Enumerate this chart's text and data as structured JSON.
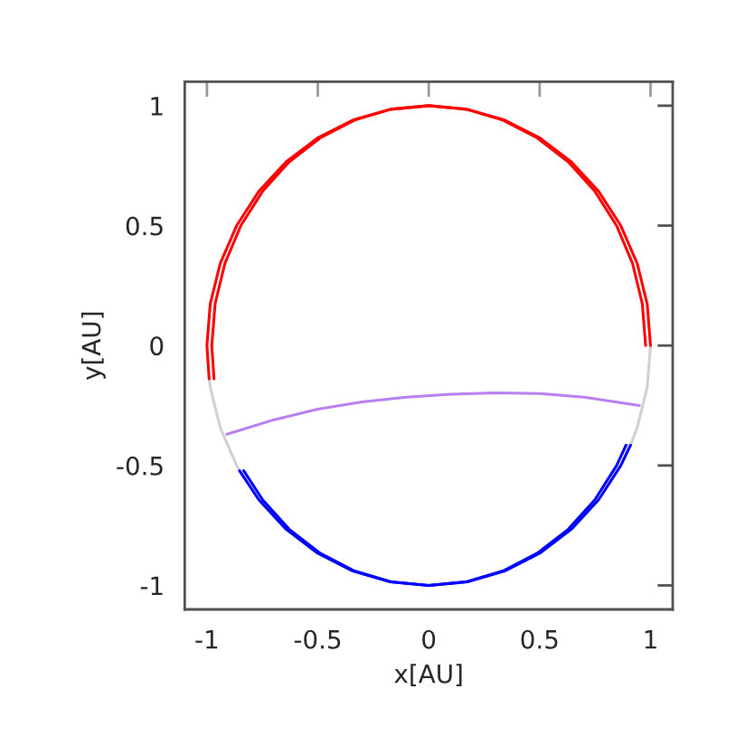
{
  "chart_data": {
    "type": "line",
    "xlabel": "x[AU]",
    "ylabel": "y[AU]",
    "xlim": [
      -1.1,
      1.1
    ],
    "ylim": [
      -1.1,
      1.1
    ],
    "xticks": [
      -1,
      -0.5,
      0,
      0.5,
      1
    ],
    "yticks": [
      -1,
      -0.5,
      0,
      0.5,
      1
    ],
    "line_style": "solid",
    "series": [
      {
        "color": "#d0d0d0",
        "x": [
          -0.99,
          -0.985,
          -0.94,
          -0.866,
          -0.853
        ],
        "values": [
          -0.139,
          -0.174,
          -0.342,
          -0.5,
          -0.522
        ]
      },
      {
        "color": "#d0d0d0",
        "x": [
          0.91,
          0.94,
          0.985,
          1
        ],
        "values": [
          -0.415,
          -0.342,
          -0.174,
          0
        ]
      },
      {
        "color": "#ff0000",
        "x": [
          -0.99,
          -1,
          -0.985,
          -0.94,
          -0.866,
          -0.766,
          -0.643,
          -0.5,
          -0.342,
          -0.174,
          0,
          0.174,
          0.342,
          0.5,
          0.643,
          0.766,
          0.866,
          0.94,
          0.985,
          1
        ],
        "values": [
          -0.139,
          0,
          0.174,
          0.342,
          0.5,
          0.643,
          0.766,
          0.866,
          0.94,
          0.985,
          1,
          0.985,
          0.94,
          0.866,
          0.766,
          0.643,
          0.5,
          0.342,
          0.174,
          0
        ]
      },
      {
        "color": "#ff0000",
        "x": [
          -0.968,
          -0.978,
          -0.963,
          -0.919,
          -0.847,
          -0.749,
          -0.629,
          -0.489,
          -0.334,
          -0.17,
          0,
          0.17,
          0.334,
          0.489,
          0.629,
          0.749,
          0.847,
          0.919,
          0.963,
          0.978
        ],
        "values": [
          -0.139,
          0,
          0.174,
          0.342,
          0.5,
          0.643,
          0.766,
          0.866,
          0.94,
          0.985,
          1,
          0.985,
          0.94,
          0.866,
          0.766,
          0.643,
          0.5,
          0.342,
          0.174,
          0
        ]
      },
      {
        "color": "#0000ff",
        "x": [
          -0.853,
          -0.766,
          -0.643,
          -0.5,
          -0.342,
          -0.174,
          0,
          0.174,
          0.342,
          0.5,
          0.643,
          0.766,
          0.866,
          0.91
        ],
        "values": [
          -0.522,
          -0.643,
          -0.766,
          -0.866,
          -0.94,
          -0.985,
          -1,
          -0.985,
          -0.94,
          -0.866,
          -0.766,
          -0.643,
          -0.5,
          -0.415
        ]
      },
      {
        "color": "#0000ff",
        "x": [
          -0.834,
          -0.749,
          -0.629,
          -0.489,
          -0.334,
          -0.17,
          0,
          0.17,
          0.334,
          0.489,
          0.629,
          0.749,
          0.847,
          0.89
        ],
        "values": [
          -0.522,
          -0.643,
          -0.766,
          -0.866,
          -0.94,
          -0.985,
          -1,
          -0.985,
          -0.94,
          -0.866,
          -0.766,
          -0.643,
          -0.5,
          -0.415
        ]
      },
      {
        "color": "#b77ff0",
        "x": [
          -0.91,
          -0.7,
          -0.5,
          -0.3,
          -0.1,
          0.1,
          0.3,
          0.5,
          0.7,
          0.95
        ],
        "values": [
          -0.37,
          -0.31,
          -0.265,
          -0.235,
          -0.215,
          -0.203,
          -0.197,
          -0.2,
          -0.215,
          -0.25
        ]
      }
    ]
  }
}
